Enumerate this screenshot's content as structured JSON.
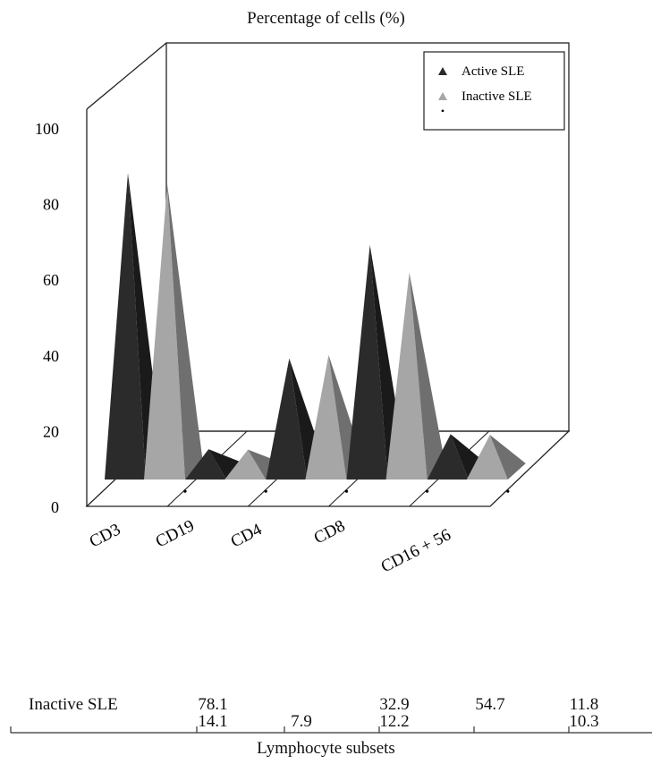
{
  "chart_data": {
    "type": "bar",
    "title": "Percentage of cells (%)",
    "xlabel": "Lymphocyte subsets",
    "ylabel": "",
    "ylim": [
      0,
      100
    ],
    "yticks": [
      "0",
      "20",
      "40",
      "60",
      "80",
      "100"
    ],
    "categories": [
      "CD3",
      "CD19",
      "CD4",
      "CD8",
      "CD16 + 56"
    ],
    "series": [
      {
        "name": "Active SLE",
        "color": "#2b2b2b",
        "values": [
          81,
          8,
          32,
          62,
          12
        ]
      },
      {
        "name": "Inactive SLE",
        "color": "#a6a6a6",
        "values": [
          78.1,
          7.9,
          32.9,
          54.7,
          11.8
        ]
      }
    ],
    "grid": false,
    "legend": "top-right",
    "legend_marker_note": "•",
    "significance_marker": "•"
  },
  "table": {
    "row_label": "Inactive SLE",
    "row1": [
      "78.1",
      "",
      "32.9",
      "54.7",
      "11.8"
    ],
    "row2": [
      "14.1",
      "7.9",
      "12.2",
      "",
      "10.3"
    ]
  }
}
